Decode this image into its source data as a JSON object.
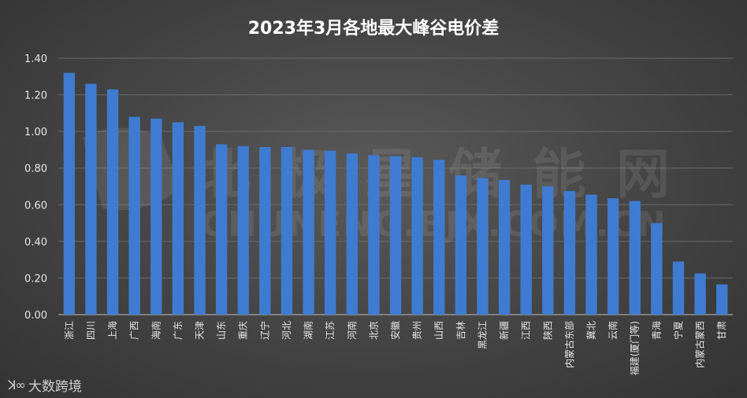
{
  "chart_data": {
    "type": "bar",
    "title": "2023年3月各地最大峰谷电价差",
    "categories": [
      "浙江",
      "四川",
      "上海",
      "广西",
      "海南",
      "广东",
      "天津",
      "山东",
      "重庆",
      "辽宁",
      "河北",
      "湖南",
      "江苏",
      "河南",
      "北京",
      "安徽",
      "贵州",
      "山西",
      "吉林",
      "黑龙江",
      "新疆",
      "江西",
      "陕西",
      "内蒙古东部",
      "冀北",
      "云南",
      "福建(厦门等)",
      "青海",
      "宁夏",
      "内蒙古蒙西",
      "甘肃"
    ],
    "values": [
      1.32,
      1.26,
      1.23,
      1.08,
      1.07,
      1.05,
      1.03,
      0.93,
      0.92,
      0.915,
      0.915,
      0.9,
      0.895,
      0.88,
      0.87,
      0.865,
      0.86,
      0.845,
      0.76,
      0.745,
      0.735,
      0.71,
      0.7,
      0.675,
      0.655,
      0.635,
      0.62,
      0.5,
      0.29,
      0.225,
      0.165
    ],
    "yticks": [
      "0.00",
      "0.20",
      "0.40",
      "0.60",
      "0.80",
      "1.00",
      "1.20",
      "1.40"
    ],
    "ylim": [
      0,
      1.4
    ],
    "grid": true,
    "bar_color": "#3f7cd1",
    "watermark": {
      "line1": "北极星储能网",
      "line2": "CHUNENG.BJX.COM.CN"
    }
  },
  "footer": {
    "logo_text": "大数跨境"
  }
}
